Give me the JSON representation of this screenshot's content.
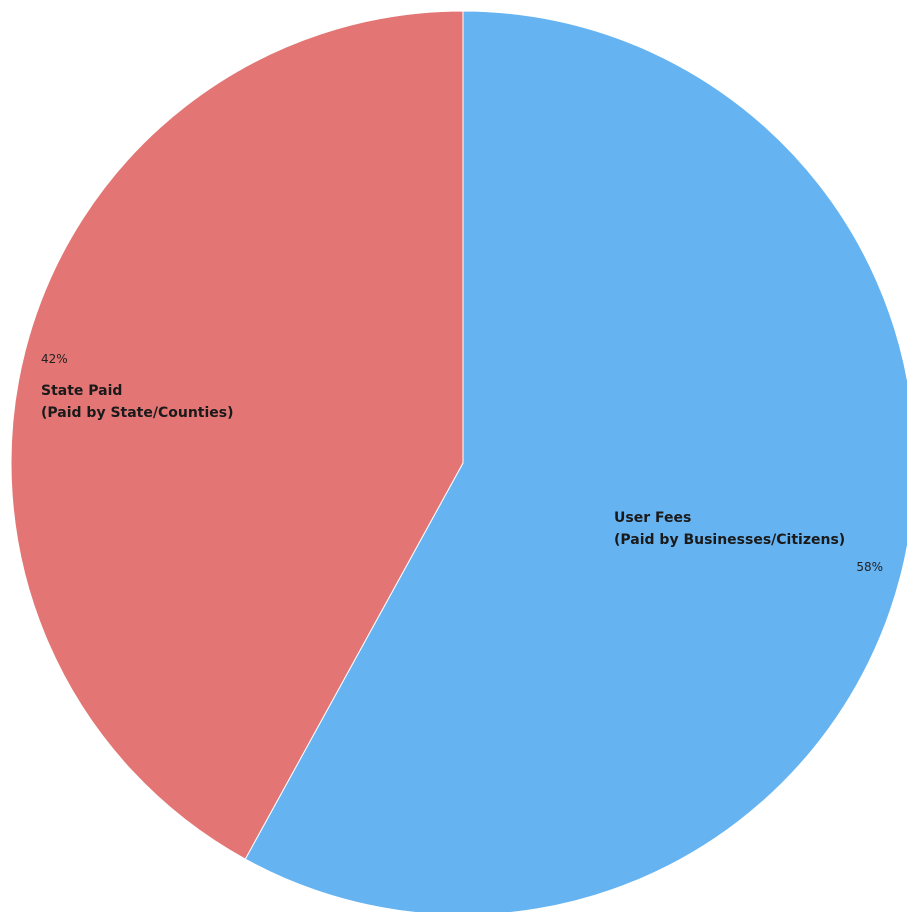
{
  "chart_data": {
    "type": "pie",
    "title": "",
    "slices": [
      {
        "label_lines": [
          "User Fees",
          "(Paid by Businesses/Citizens)"
        ],
        "value": 58,
        "percent_label": "58%",
        "color": "#66b3f2"
      },
      {
        "label_lines": [
          "State Paid",
          "(Paid by State/Counties)"
        ],
        "value": 42,
        "percent_label": "42%",
        "color": "#e37575"
      }
    ],
    "start_angle_deg": 0,
    "direction": "clockwise",
    "legend": "none"
  }
}
